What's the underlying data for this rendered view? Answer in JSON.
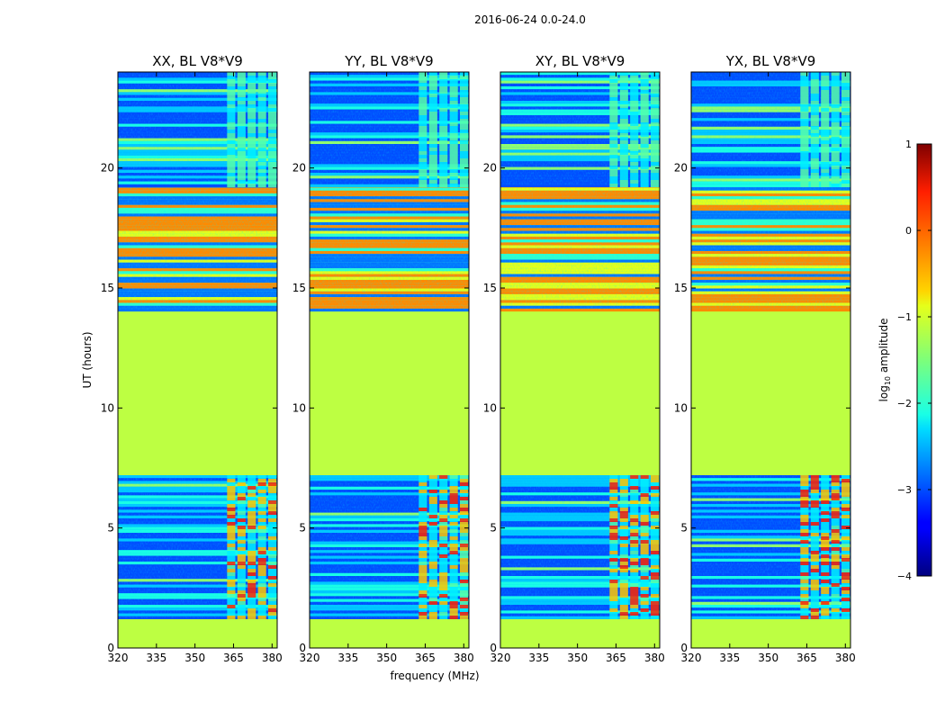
{
  "suptitle": "2016-06-24 0.0-24.0",
  "chart_data": {
    "type": "heatmap",
    "suptitle": "2016-06-24 0.0-24.0",
    "xlabel": "frequency (MHz)",
    "ylabel": "UT (hours)",
    "xlim": [
      320,
      382
    ],
    "ylim": [
      0,
      24
    ],
    "x_ticks": [
      320,
      335,
      350,
      365,
      380
    ],
    "y_ticks": [
      0,
      5,
      10,
      15,
      20
    ],
    "panels": [
      {
        "title": "XX, BL V8*V9",
        "pol": "XX"
      },
      {
        "title": "YY, BL V8*V9",
        "pol": "YY"
      },
      {
        "title": "XY, BL V8*V9",
        "pol": "XY"
      },
      {
        "title": "YX, BL V8*V9",
        "pol": "YX"
      }
    ],
    "time_segments": [
      {
        "ut_start": 0.0,
        "ut_end": 1.25,
        "log10_amplitude": -1.2,
        "note": "flat / flagged"
      },
      {
        "ut_start": 1.25,
        "ut_end": 7.2,
        "log10_amplitude": -2.7,
        "note": "noise with RFI 362-380 MHz"
      },
      {
        "ut_start": 7.2,
        "ut_end": 14.1,
        "log10_amplitude": -1.2,
        "note": "flat / flagged"
      },
      {
        "ut_start": 14.1,
        "ut_end": 19.3,
        "log10_amplitude": -1.8,
        "note": "horizontal striping"
      },
      {
        "ut_start": 19.3,
        "ut_end": 24.0,
        "log10_amplitude": -2.7,
        "note": "noise with RFI 362-380 MHz"
      }
    ],
    "colorbar": {
      "label_prefix": "log",
      "label_sub": "10",
      "label_suffix": " amplitude",
      "min": -4,
      "max": 1,
      "ticks": [
        "1",
        "0",
        "−1",
        "−2",
        "−3",
        "−4"
      ],
      "tick_values": [
        1,
        0,
        -1,
        -2,
        -3,
        -4
      ],
      "colormap": "jet"
    }
  }
}
